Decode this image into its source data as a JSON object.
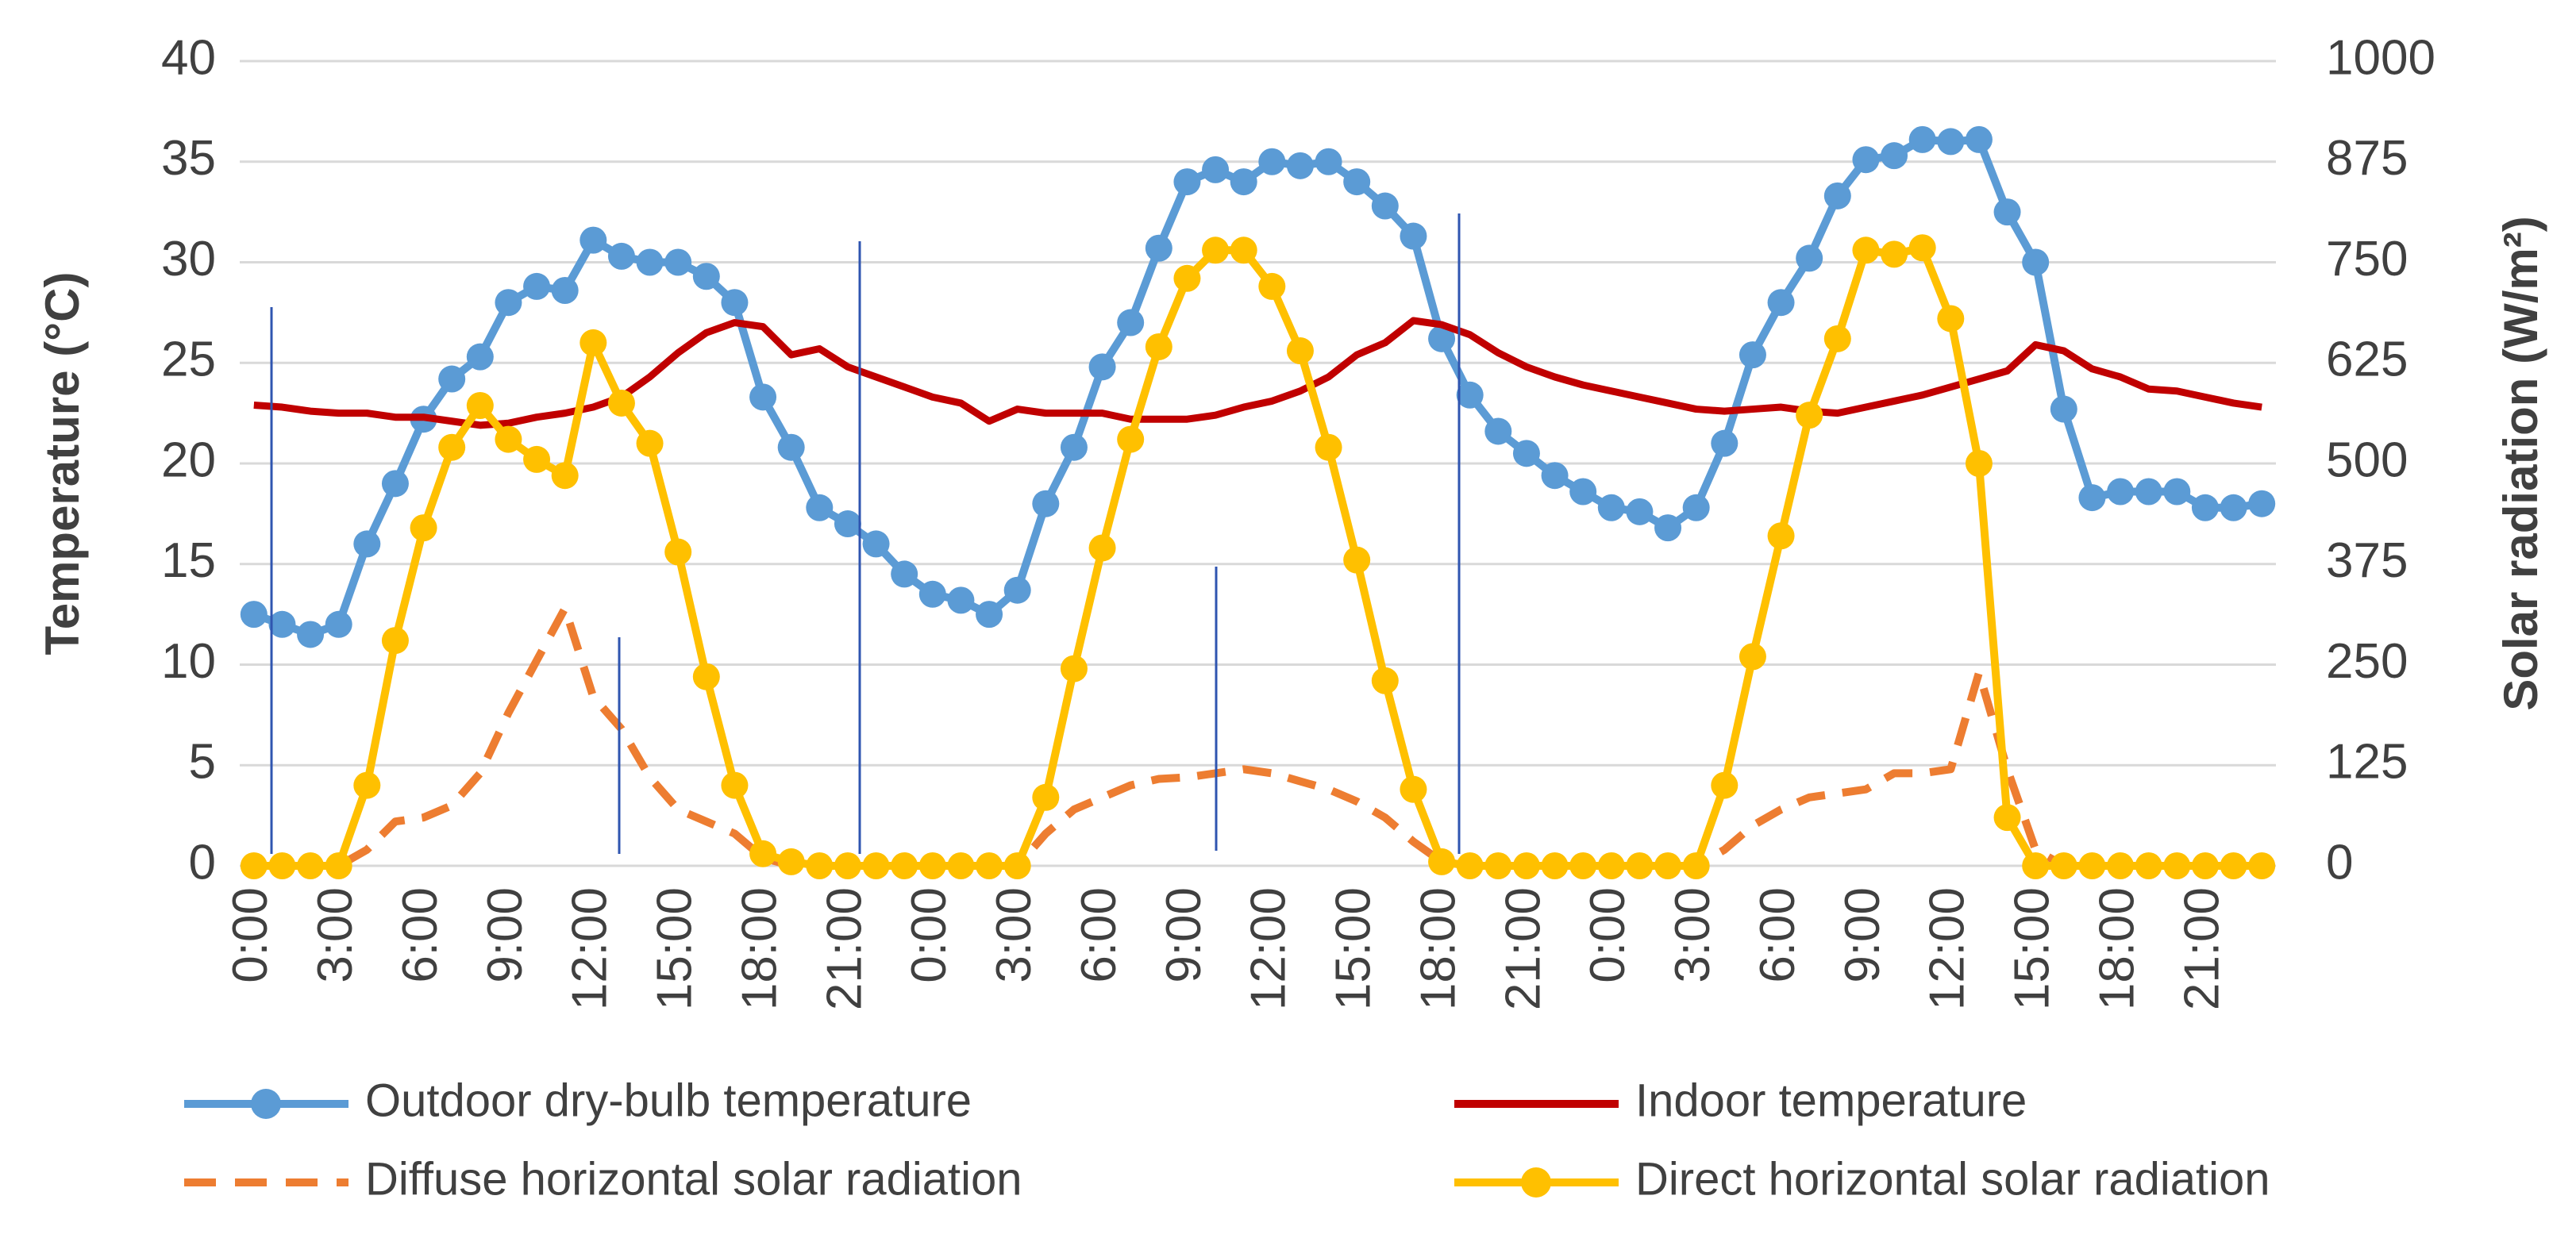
{
  "chart_data": {
    "type": "line",
    "y_label": "Temperature (°C)",
    "y2_label": "Solar radiation (W/m²)",
    "categories": [
      "0:00",
      null,
      null,
      "3:00",
      null,
      null,
      "6:00",
      null,
      null,
      "9:00",
      null,
      null,
      "12:00",
      null,
      null,
      "15:00",
      null,
      null,
      "18:00",
      null,
      null,
      "21:00",
      null,
      null,
      "0:00",
      null,
      null,
      "3:00",
      null,
      null,
      "6:00",
      null,
      null,
      "9:00",
      null,
      null,
      "12:00",
      null,
      null,
      "15:00",
      null,
      null,
      "18:00",
      null,
      null,
      "21:00",
      null,
      null,
      "0:00",
      null,
      null,
      "3:00",
      null,
      null,
      "6:00",
      null,
      null,
      "9:00",
      null,
      null,
      "12:00",
      null,
      null,
      "15:00",
      null,
      null,
      "18:00",
      null,
      null,
      "21:00",
      null,
      null
    ],
    "series": [
      {
        "name": "Outdoor dry-bulb temperature",
        "color": "#5b9bd5",
        "marker": "circle",
        "line_style": "solid",
        "axis": "y",
        "values": [
          12.5,
          12,
          11.5,
          12,
          16,
          19,
          22.2,
          24.2,
          25.3,
          28,
          28.8,
          28.6,
          31.1,
          30.3,
          30,
          30,
          29.3,
          28,
          23.3,
          20.8,
          17.8,
          17,
          16,
          14.5,
          13.5,
          13.2,
          12.5,
          13.7,
          18,
          20.8,
          24.8,
          27,
          30.7,
          34,
          34.6,
          34,
          35,
          34.8,
          35,
          34,
          32.8,
          31.3,
          26.2,
          23.4,
          21.6,
          20.5,
          19.4,
          18.6,
          17.8,
          17.6,
          16.8,
          17.8,
          21,
          25.4,
          28,
          30.2,
          33.3,
          35.1,
          35.3,
          36.1,
          36,
          36.1,
          32.5,
          30,
          22.7,
          18.3,
          18.6,
          18.6,
          18.6,
          17.8,
          17.8,
          18
        ]
      },
      {
        "name": "Indoor temperature",
        "color": "#c00000",
        "marker": "none",
        "line_style": "solid",
        "axis": "y",
        "values": [
          22.9,
          22.8,
          22.6,
          22.5,
          22.5,
          22.3,
          22.3,
          22.1,
          21.9,
          22,
          22.3,
          22.5,
          22.8,
          23.3,
          24.3,
          25.5,
          26.5,
          27,
          26.8,
          25.4,
          25.7,
          24.8,
          24.3,
          23.8,
          23.3,
          23,
          22.1,
          22.7,
          22.5,
          22.5,
          22.5,
          22.2,
          22.2,
          22.2,
          22.4,
          22.8,
          23.1,
          23.6,
          24.3,
          25.4,
          26,
          27.1,
          26.9,
          26.4,
          25.5,
          24.8,
          24.3,
          23.9,
          23.6,
          23.3,
          23,
          22.7,
          22.6,
          22.7,
          22.8,
          22.6,
          22.5,
          22.8,
          23.1,
          23.4,
          23.8,
          24.2,
          24.6,
          25.9,
          25.6,
          24.7,
          24.3,
          23.7,
          23.6,
          23.3,
          23,
          22.8
        ]
      },
      {
        "name": "Diffuse horizontal solar radiation",
        "color": "#ed7d31",
        "marker": "none",
        "line_style": "dashed",
        "axis": "y2",
        "values": [
          0,
          0,
          0,
          0,
          20,
          55,
          60,
          75,
          115,
          190,
          255,
          320,
          210,
          170,
          110,
          70,
          55,
          40,
          10,
          0,
          0,
          0,
          0,
          0,
          0,
          0,
          0,
          0,
          40,
          70,
          85,
          100,
          108,
          110,
          115,
          120,
          115,
          105,
          95,
          80,
          60,
          30,
          5,
          0,
          0,
          0,
          0,
          0,
          0,
          0,
          0,
          0,
          20,
          50,
          70,
          85,
          90,
          95,
          115,
          115,
          120,
          240,
          120,
          20,
          0,
          0,
          0,
          0,
          0,
          0,
          0,
          0
        ]
      },
      {
        "name": "Direct horizontal solar radiation",
        "color": "#ffc000",
        "marker": "circle",
        "line_style": "solid",
        "axis": "y2",
        "values": [
          0,
          0,
          0,
          0,
          100,
          280,
          420,
          520,
          572,
          530,
          505,
          485,
          650,
          575,
          525,
          390,
          235,
          100,
          15,
          5,
          0,
          0,
          0,
          0,
          0,
          0,
          0,
          0,
          85,
          245,
          395,
          530,
          645,
          730,
          765,
          765,
          720,
          640,
          520,
          380,
          230,
          95,
          5,
          0,
          0,
          0,
          0,
          0,
          0,
          0,
          0,
          0,
          100,
          260,
          410,
          560,
          655,
          765,
          760,
          768,
          680,
          500,
          60,
          0,
          0,
          0,
          0,
          0,
          0,
          0,
          0,
          0
        ]
      }
    ],
    "ylim": [
      0,
      40
    ],
    "yticks": [
      0,
      5,
      10,
      15,
      20,
      25,
      30,
      35,
      40
    ],
    "y2lim": [
      0,
      1000
    ],
    "y2ticks": [
      0,
      125,
      250,
      375,
      500,
      625,
      750,
      875,
      1000
    ],
    "grid": true,
    "legend": "bottom"
  }
}
